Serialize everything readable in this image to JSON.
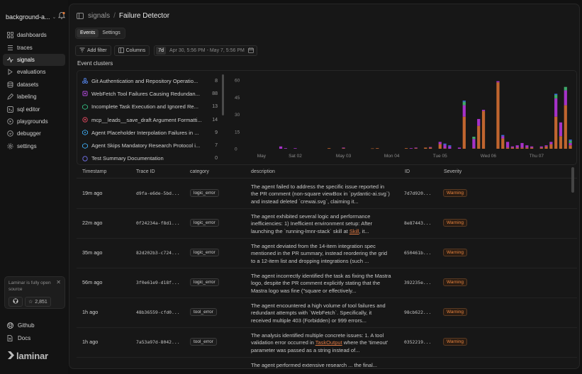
{
  "sidebar": {
    "project": "background-a...",
    "items": [
      {
        "label": "dashboards",
        "icon": "grid-icon"
      },
      {
        "label": "traces",
        "icon": "list-icon"
      },
      {
        "label": "signals",
        "icon": "signal-icon"
      },
      {
        "label": "evaluations",
        "icon": "flask-icon"
      },
      {
        "label": "datasets",
        "icon": "database-icon"
      },
      {
        "label": "labeling",
        "icon": "pen-icon"
      },
      {
        "label": "sql editor",
        "icon": "terminal-icon"
      },
      {
        "label": "playgrounds",
        "icon": "play-icon"
      },
      {
        "label": "debugger",
        "icon": "bug-icon"
      },
      {
        "label": "settings",
        "icon": "gear-icon"
      }
    ],
    "active_item": "signals",
    "promo": {
      "text": "Laminar is fully open source",
      "stars": "2,851"
    },
    "github_label": "Github",
    "docs_label": "Docs",
    "logo_text": "laminar"
  },
  "header": {
    "crumb_root": "signals",
    "crumb_sep": "/",
    "crumb_current": "Failure Detector"
  },
  "tabs": [
    {
      "label": "Events",
      "active": true
    },
    {
      "label": "Settings",
      "active": false
    }
  ],
  "toolbar": {
    "add_filter": "Add filter",
    "columns": "Columns",
    "range_badge": "7d",
    "range_text": "Apr 30, 5:56 PM - May 7, 5:56 PM"
  },
  "clusters": {
    "title": "Event clusters",
    "items": [
      {
        "label": "Git Authentication and Repository Operatio...",
        "count": "8",
        "color": "#4f7bd8"
      },
      {
        "label": "WebFetch Tool Failures Causing Redundan...",
        "count": "88",
        "color": "#b04ad8"
      },
      {
        "label": "Incomplete Task Execution and Ignored Re...",
        "count": "13",
        "color": "#2fa874"
      },
      {
        "label": "mcp__leads__save_draft Argument Formatti...",
        "count": "14",
        "color": "#d0455a"
      },
      {
        "label": "Agent Placeholder Interpolation Failures in ...",
        "count": "9",
        "color": "#3a9ad8"
      },
      {
        "label": "Agent Skips Mandatory Research Protocol i...",
        "count": "7",
        "color": "#3a9ad8"
      },
      {
        "label": "Test Summary Documentation",
        "count": "0",
        "color": "#6a6ad8"
      }
    ]
  },
  "chart_data": {
    "type": "bar",
    "stacked": true,
    "ylim": [
      0,
      60
    ],
    "yticks": [
      "60",
      "45",
      "30",
      "15",
      "0"
    ],
    "ytick_values": [
      60,
      45,
      30,
      15,
      0
    ],
    "xticks": [
      "May",
      "Sat 02",
      "May 03",
      "Mon 04",
      "Tue 05",
      "Wed 06",
      "Thu 07"
    ],
    "xtick_positions": [
      3,
      10,
      20,
      30,
      40,
      50,
      60
    ],
    "n_bins": 68,
    "series": [
      {
        "color": "#c0652f",
        "values": {
          "17": 0.5,
          "20": 0.5,
          "26": 0.3,
          "27": 0.5,
          "33": 0.5,
          "35": 0.5,
          "37": 1,
          "38": 1,
          "40": 4,
          "41": 0.5,
          "45": 28,
          "47": 0.5,
          "48": 20,
          "49": 33,
          "52": 58,
          "53": 9,
          "54": 1,
          "55": 1,
          "56": 1,
          "57": 1,
          "58": 1,
          "59": 1,
          "61": 1,
          "62": 2,
          "63": 4,
          "64": 28,
          "65": 11,
          "66": 38,
          "67": 3
        }
      },
      {
        "color": "#a632c8",
        "values": {
          "7": 2,
          "8": 0.5,
          "10": 0.5,
          "20": 0.5,
          "34": 0.5,
          "35": 0.5,
          "38": 0.5,
          "40": 2,
          "41": 3,
          "42": 2,
          "44": 1,
          "45": 10,
          "47": 8,
          "48": 6,
          "49": 1,
          "52": 1,
          "53": 2,
          "54": 5,
          "55": 1,
          "56": 2,
          "57": 4,
          "58": 2,
          "59": 1,
          "61": 1,
          "62": 1,
          "63": 2,
          "64": 16,
          "65": 12,
          "66": 13,
          "67": 2
        }
      },
      {
        "color": "#3fa86a",
        "values": {
          "45": 3,
          "47": 2,
          "64": 3,
          "66": 3,
          "67": 2
        }
      },
      {
        "color": "#3a6fd8",
        "values": {
          "41": 1,
          "42": 1,
          "45": 1,
          "53": 1,
          "64": 1,
          "67": 1
        }
      }
    ]
  },
  "table": {
    "columns": [
      "Timestamp",
      "Trace ID",
      "category",
      "description",
      "ID",
      "Severity"
    ],
    "rows": [
      {
        "timestamp": "19m ago",
        "trace_id": "d9fa-e6de-5bd...",
        "category": "logic_error",
        "desc_a": "The agent failed to address the specific issue reported in the PR comment (non-square viewBox in `pydantic-ai.svg`) and instead deleted `crewai.svg`, claiming it...",
        "desc_link": "",
        "desc_b": "",
        "id": "7d7d920...",
        "severity": "Warning"
      },
      {
        "timestamp": "22m ago",
        "trace_id": "0f24234a-f8d1...",
        "category": "logic_error",
        "desc_a": "The agent exhibited several logic and performance inefficiencies: 1) Inefficient environment setup: After launching the `running-lmnr-stack` skill at ",
        "desc_link": "Skill",
        "desc_b": ", it...",
        "id": "8e87443...",
        "severity": "Warning"
      },
      {
        "timestamp": "35m ago",
        "trace_id": "82d202b3-c724...",
        "category": "logic_error",
        "desc_a": "The agent deviated from the 14-item integration spec mentioned in the PR summary, instead reordering the grid to a 12-item list and dropping integrations (such ...",
        "desc_link": "",
        "desc_b": "",
        "id": "650461b...",
        "severity": "Warning"
      },
      {
        "timestamp": "56m ago",
        "trace_id": "3f0e61e9-d18f...",
        "category": "logic_error",
        "desc_a": "The agent incorrectly identified the task as fixing the Mastra logo, despite the PR comment explicitly stating that the Mastra logo was fine (\"square or effectively...",
        "desc_link": "",
        "desc_b": "",
        "id": "392235e...",
        "severity": "Warning"
      },
      {
        "timestamp": "1h ago",
        "trace_id": "48b36559-cfd0...",
        "category": "tool_error",
        "desc_a": "The agent encountered a high volume of tool failures and redundant attempts with `WebFetch`. Specifically, it received multiple 403 (Forbidden) or 999 errors...",
        "desc_link": "",
        "desc_b": "",
        "id": "98cb622...",
        "severity": "Warning"
      },
      {
        "timestamp": "1h ago",
        "trace_id": "7a53a97d-8042...",
        "category": "tool_error",
        "desc_a": "The analysis identified multiple concrete issues: 1. A tool validation error occurred in ",
        "desc_link": "TaskOutput",
        "desc_b": " where the 'timeout' parameter was passed as a string instead of...",
        "id": "0352219...",
        "severity": "Warning"
      },
      {
        "timestamp": "1h ago",
        "trace_id": "",
        "category": "",
        "desc_a": "The agent performed extensive research ... the final...",
        "desc_link": "",
        "desc_b": "",
        "id": "",
        "severity": ""
      }
    ]
  }
}
